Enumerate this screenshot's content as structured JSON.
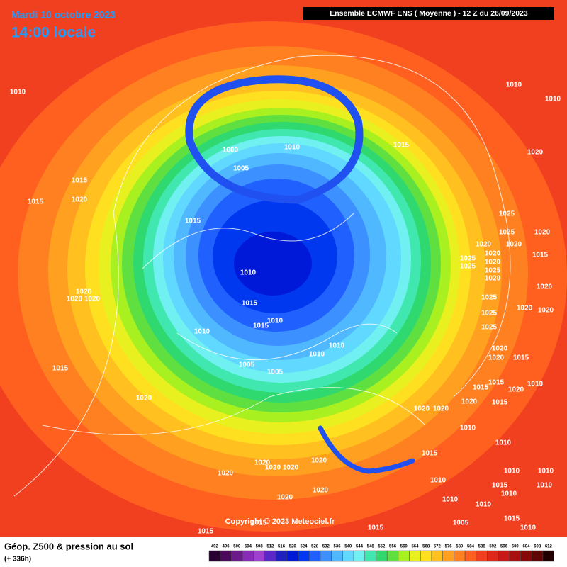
{
  "header": {
    "date": "Mardi 10 octobre 2023",
    "time": "14:00 locale",
    "model": "Ensemble ECMWF ENS  ( Moyenne )  -  12 Z du 26/09/2023"
  },
  "copyright": "Copyright © 2023 Meteociel.fr",
  "footer": {
    "title": "Géop. Z500 & pression au sol",
    "lead": "(+ 336h)"
  },
  "scale": {
    "values": [
      492,
      496,
      500,
      504,
      508,
      512,
      516,
      520,
      524,
      528,
      532,
      536,
      540,
      544,
      548,
      552,
      556,
      560,
      564,
      568,
      572,
      576,
      580,
      584,
      588,
      592,
      596,
      600,
      604,
      608,
      612
    ],
    "colors": [
      "#2a0033",
      "#4b0a5c",
      "#6a1a8a",
      "#8a2ab8",
      "#a040d0",
      "#5a28c8",
      "#2020c0",
      "#0018d8",
      "#0038f0",
      "#2060ff",
      "#3c90ff",
      "#50b8ff",
      "#60d8ff",
      "#70f0f0",
      "#40e8b0",
      "#30d870",
      "#60e040",
      "#a8f020",
      "#e8f020",
      "#ffe020",
      "#ffc020",
      "#ffa020",
      "#ff8020",
      "#ff6020",
      "#f04020",
      "#e02818",
      "#c81818",
      "#a81010",
      "#880808",
      "#600404",
      "#200000"
    ]
  },
  "isobar_labels": [
    "1010",
    "1010",
    "1010",
    "1015",
    "1020",
    "1000",
    "1010",
    "1005",
    "1015",
    "1020",
    "1015",
    "1015",
    "1025",
    "1025",
    "1020",
    "1020",
    "1020",
    "1025",
    "1020",
    "1015",
    "1025",
    "1020",
    "1025",
    "1020",
    "1010",
    "1020",
    "1020",
    "1020",
    "1020",
    "1015",
    "1010",
    "1015",
    "1010",
    "1025",
    "1020",
    "1025",
    "1020",
    "1025",
    "1010",
    "1010",
    "1020",
    "1020",
    "1015",
    "1005",
    "1005",
    "1015",
    "1015",
    "1010",
    "1015",
    "1020",
    "1015",
    "1020",
    "1020",
    "1020",
    "1020",
    "1010",
    "1010",
    "1015",
    "1020",
    "1020",
    "1020",
    "1020",
    "1020",
    "1010",
    "1010",
    "1010",
    "1015",
    "1010",
    "1010",
    "1020",
    "1020",
    "1010",
    "1010",
    "1015",
    "1015",
    "1005",
    "1015",
    "1010",
    "1015"
  ]
}
